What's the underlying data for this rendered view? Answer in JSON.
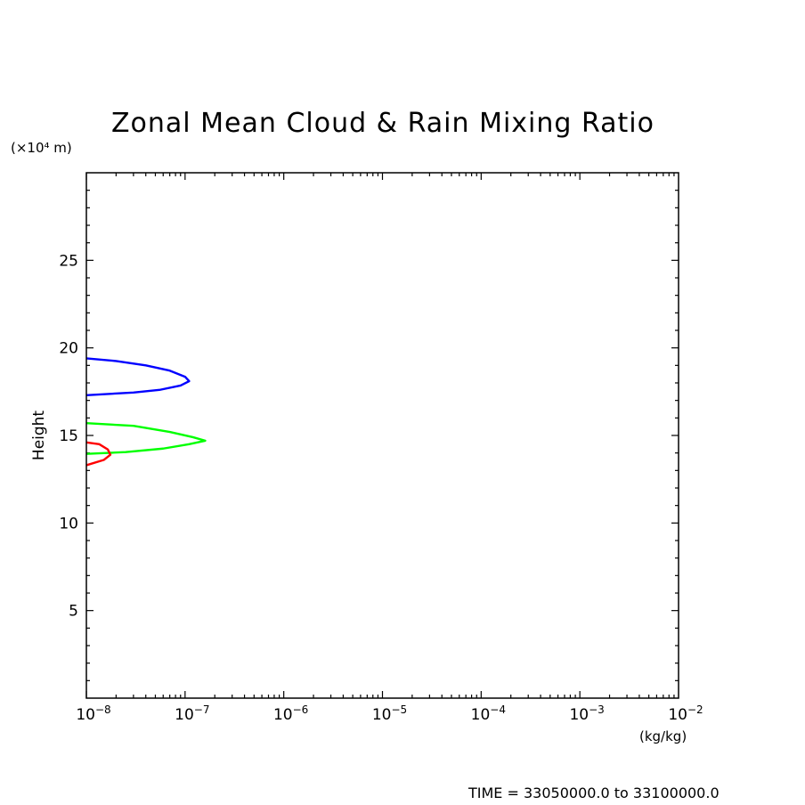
{
  "chart_data": {
    "type": "line",
    "title": "Zonal Mean Cloud & Rain Mixing Ratio",
    "xlabel": "(kg/kg)",
    "ylabel": "Height",
    "y_unit_label": "(×10⁴ m)",
    "x_scale": "log",
    "xlim": [
      1e-08,
      0.01
    ],
    "ylim": [
      0,
      30
    ],
    "x_tick_labels": [
      {
        "base": "10",
        "exp": "−8",
        "value": 1e-08
      },
      {
        "base": "10",
        "exp": "−7",
        "value": 1e-07
      },
      {
        "base": "10",
        "exp": "−6",
        "value": 1e-06
      },
      {
        "base": "10",
        "exp": "−5",
        "value": 1e-05
      },
      {
        "base": "10",
        "exp": "−4",
        "value": 0.0001
      },
      {
        "base": "10",
        "exp": "−3",
        "value": 0.001
      },
      {
        "base": "10",
        "exp": "−2",
        "value": 0.01
      }
    ],
    "y_ticks": [
      5,
      10,
      15,
      20,
      25
    ],
    "y_tick_labels": [
      "5",
      "10",
      "15",
      "20",
      "25"
    ],
    "grid": false,
    "legend": "none",
    "series": [
      {
        "color": "#0000ff",
        "points": [
          {
            "x": 1e-08,
            "y": 19.4
          },
          {
            "x": 2e-08,
            "y": 19.25
          },
          {
            "x": 4e-08,
            "y": 19.0
          },
          {
            "x": 7e-08,
            "y": 18.7
          },
          {
            "x": 1e-07,
            "y": 18.35
          },
          {
            "x": 1.1e-07,
            "y": 18.1
          },
          {
            "x": 9e-08,
            "y": 17.85
          },
          {
            "x": 5.5e-08,
            "y": 17.6
          },
          {
            "x": 3e-08,
            "y": 17.45
          },
          {
            "x": 1e-08,
            "y": 17.3
          }
        ]
      },
      {
        "color": "#00ff00",
        "points": [
          {
            "x": 1e-08,
            "y": 15.7
          },
          {
            "x": 3e-08,
            "y": 15.55
          },
          {
            "x": 7e-08,
            "y": 15.2
          },
          {
            "x": 1.2e-07,
            "y": 14.9
          },
          {
            "x": 1.6e-07,
            "y": 14.7
          },
          {
            "x": 1.1e-07,
            "y": 14.5
          },
          {
            "x": 6e-08,
            "y": 14.25
          },
          {
            "x": 2.5e-08,
            "y": 14.05
          },
          {
            "x": 1e-08,
            "y": 13.95
          }
        ]
      },
      {
        "color": "#ff0000",
        "points": [
          {
            "x": 1e-08,
            "y": 14.6
          },
          {
            "x": 1.35e-08,
            "y": 14.5
          },
          {
            "x": 1.65e-08,
            "y": 14.2
          },
          {
            "x": 1.75e-08,
            "y": 13.9
          },
          {
            "x": 1.5e-08,
            "y": 13.6
          },
          {
            "x": 1e-08,
            "y": 13.3
          }
        ]
      }
    ]
  },
  "footer": {
    "time_label": "TIME = 33050000.0 to 33100000.0"
  }
}
